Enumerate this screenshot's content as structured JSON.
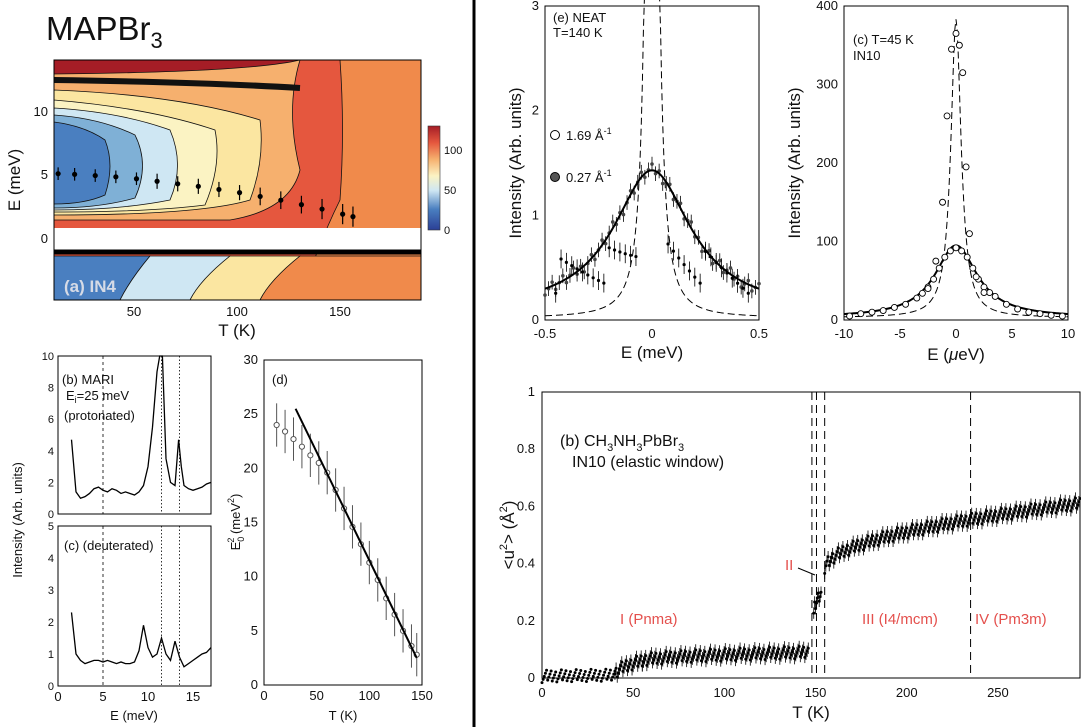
{
  "figure_title": "MAPBr",
  "figure_title_sub": "3",
  "chart_data": [
    {
      "id": "a",
      "type": "heatmap",
      "panel_label": "(a) IN4",
      "xlabel": "T (K)",
      "ylabel": "E (meV)",
      "xlim": [
        10,
        188
      ],
      "ylim": [
        -5,
        14
      ],
      "xticks": [
        "50",
        "100",
        "150"
      ],
      "yticks": [
        "0",
        "5",
        "10"
      ],
      "colorbar_ticks": [
        "0",
        "50",
        "100"
      ],
      "colorbar_range": [
        0,
        130
      ],
      "series": [
        {
          "x": [
            12,
            20,
            30,
            40,
            50,
            60,
            70,
            80,
            90,
            100,
            110,
            120,
            130,
            140,
            150,
            155
          ],
          "y": [
            5.0,
            4.95,
            4.85,
            4.75,
            4.6,
            4.4,
            4.2,
            4.0,
            3.75,
            3.5,
            3.2,
            2.9,
            2.55,
            2.2,
            1.8,
            1.6
          ],
          "err": [
            0.5,
            0.5,
            0.5,
            0.5,
            0.5,
            0.6,
            0.6,
            0.6,
            0.6,
            0.6,
            0.7,
            0.7,
            0.7,
            0.8,
            0.8,
            0.8
          ]
        }
      ]
    },
    {
      "id": "b-mari",
      "type": "line",
      "panel_label": "(b) MARI",
      "annotation_1": "E",
      "annotation_1_sub": "i",
      "annotation_1_rest": "=25 meV",
      "annotation_2": "(protonated)",
      "ylim": [
        0,
        10
      ],
      "xlim": [
        0,
        17
      ],
      "yticks": [
        "0",
        "2",
        "4",
        "6",
        "8",
        "10"
      ],
      "x": [
        1.5,
        2.0,
        2.5,
        3,
        3.5,
        4,
        4.5,
        5,
        5.5,
        6,
        6.5,
        7,
        7.5,
        8,
        8.5,
        9,
        9.5,
        10,
        10.5,
        11,
        11.3,
        11.6,
        12,
        12.5,
        13,
        13.4,
        13.7,
        14,
        14.5,
        15,
        15.5,
        16,
        16.5,
        17
      ],
      "y": [
        4.7,
        1.4,
        1.0,
        1.1,
        1.3,
        1.6,
        1.7,
        1.5,
        1.4,
        1.6,
        1.5,
        1.3,
        1.4,
        1.3,
        1.2,
        1.4,
        1.8,
        3.0,
        5.5,
        9.0,
        10.0,
        10.0,
        3.5,
        2.0,
        1.8,
        4.7,
        3.0,
        1.8,
        1.6,
        1.5,
        1.6,
        1.7,
        1.9,
        2.0
      ],
      "vlines": [
        5,
        11.5,
        13.5
      ]
    },
    {
      "id": "c-mari",
      "type": "line",
      "panel_label": "(c) (deuterated)",
      "xlabel": "E (meV)",
      "ylim": [
        0,
        5
      ],
      "xlim": [
        0,
        17
      ],
      "xticks": [
        "0",
        "5",
        "10",
        "15"
      ],
      "yticks": [
        "0",
        "1",
        "2",
        "3",
        "4",
        "5"
      ],
      "x": [
        1.5,
        2.0,
        2.5,
        3,
        3.5,
        4,
        4.5,
        5,
        5.5,
        6,
        6.5,
        7,
        7.5,
        8,
        8.5,
        9,
        9.5,
        10,
        10.5,
        11,
        11.5,
        12,
        12.5,
        13,
        13.5,
        14,
        14.5,
        15,
        15.5,
        16,
        16.5,
        17
      ],
      "y": [
        2.3,
        1.0,
        0.8,
        0.7,
        0.75,
        0.8,
        0.8,
        0.75,
        0.8,
        0.75,
        0.7,
        0.75,
        0.7,
        0.7,
        0.75,
        1.1,
        1.9,
        1.2,
        0.9,
        1.0,
        1.5,
        1.0,
        0.8,
        1.4,
        0.9,
        0.6,
        0.7,
        0.8,
        0.9,
        1.0,
        1.05,
        1.2
      ],
      "vlines": [
        5,
        11.5,
        13.5
      ]
    },
    {
      "id": "d",
      "type": "scatter",
      "panel_label": "(d)",
      "xlabel": "T (K)",
      "ylabel_main": "E",
      "ylabel_sub": "0",
      "ylabel_sup": "2",
      "ylabel_unit": " (meV",
      "ylabel_unit_sup": "2",
      "ylabel_close": ")",
      "xlim": [
        0,
        150
      ],
      "ylim": [
        0,
        30
      ],
      "xticks": [
        "0",
        "50",
        "100",
        "150"
      ],
      "yticks": [
        "0",
        "5",
        "10",
        "15",
        "20",
        "25",
        "30"
      ],
      "x": [
        12,
        20,
        28,
        36,
        44,
        52,
        60,
        68,
        76,
        84,
        92,
        100,
        108,
        116,
        124,
        132,
        140,
        145
      ],
      "y": [
        24.0,
        23.4,
        22.7,
        22.0,
        21.2,
        20.5,
        19.6,
        18.0,
        16.3,
        14.6,
        13.0,
        11.3,
        9.7,
        8.0,
        6.5,
        5.0,
        3.6,
        2.8
      ],
      "err": 2.0,
      "fit_line": {
        "x": [
          30,
          145
        ],
        "y": [
          25.5,
          2.5
        ]
      }
    },
    {
      "id": "e-neat",
      "type": "scatter",
      "panel_label": "(e) NEAT",
      "panel_sub": "T=140 K",
      "xlabel": "E (meV)",
      "ylabel": "Intensity (Arb. units)",
      "xlim": [
        -0.5,
        0.5
      ],
      "ylim": [
        0,
        3
      ],
      "xticks": [
        "-0.5",
        "0",
        "0.5"
      ],
      "yticks": [
        "0",
        "1",
        "2",
        "3"
      ],
      "legend": [
        {
          "label": "1.69 Å",
          "sup": "-1",
          "marker": "open"
        },
        {
          "label": "0.27 Å",
          "sup": "-1",
          "marker": "filled"
        }
      ],
      "lorentz_amp": 1.35,
      "lorentz_gamma": 0.22,
      "narrow_amp": 20,
      "narrow_gamma": 0.016,
      "baseline": 0.08
    },
    {
      "id": "c-in10",
      "type": "scatter",
      "panel_label": "(c) T=45 K",
      "panel_sub": "IN10",
      "xlabel_main": "E (",
      "xlabel_mu": "μ",
      "xlabel_rest": "eV)",
      "ylabel": "Intensity (Arb. units)",
      "xlim": [
        -10,
        10
      ],
      "ylim": [
        0,
        400
      ],
      "xticks": [
        "-10",
        "-5",
        "0",
        "5",
        "10"
      ],
      "yticks": [
        "0",
        "100",
        "200",
        "300",
        "400"
      ],
      "narrow_x": [
        -2.5,
        -1.8,
        -1.2,
        -0.8,
        -0.4,
        0,
        0.3,
        0.6,
        0.9,
        1.2,
        1.8,
        2.5
      ],
      "narrow_y": [
        40,
        75,
        150,
        260,
        345,
        365,
        350,
        315,
        195,
        110,
        55,
        35
      ],
      "broad_x": [
        -9.5,
        -8.5,
        -7.5,
        -6.5,
        -5.5,
        -4.5,
        -3.5,
        -3,
        -2.5,
        -2,
        -1.5,
        -1,
        -0.5,
        0,
        0.5,
        1,
        1.5,
        2,
        2.5,
        3,
        3.5,
        4.5,
        5.5,
        6.5,
        7.5,
        8.5,
        9.5
      ],
      "broad_y": [
        5,
        8,
        10,
        12,
        16,
        20,
        28,
        34,
        42,
        52,
        66,
        80,
        88,
        92,
        88,
        80,
        66,
        52,
        42,
        35,
        30,
        20,
        14,
        10,
        8,
        6,
        5
      ],
      "lorentz_amp": 92,
      "lorentz_gamma": 2.3,
      "narrow_amp": 380,
      "narrow_gamma": 0.55
    },
    {
      "id": "b-in10",
      "type": "scatter",
      "panel_label_main": "(b) CH",
      "panel_label_parts": [
        "3",
        "NH",
        "3",
        "PbBr",
        "3"
      ],
      "panel_sub": "IN10 (elastic window)",
      "xlabel": "T (K)",
      "ylabel": "<u",
      "ylabel_sup": "2",
      "ylabel_mid": "> (",
      "ylabel_unit": "Å",
      "ylabel_unit_sup": "2",
      "ylabel_close": ")",
      "xlim": [
        0,
        295
      ],
      "ylim": [
        0,
        1
      ],
      "xticks": [
        "0",
        "50",
        "100",
        "150",
        "200",
        "250"
      ],
      "yticks": [
        "0",
        "0.2",
        "0.4",
        "0.6",
        "0.8",
        "1"
      ],
      "vlines": [
        148,
        150.5,
        155,
        235
      ],
      "phases": [
        {
          "label": "I (Pnma)"
        },
        {
          "label": "II"
        },
        {
          "label": "III (I4/mcm)"
        },
        {
          "label": "IV (Pm3m)"
        }
      ],
      "segments": [
        {
          "x": [
            0,
            40
          ],
          "y": [
            0.005,
            0.01
          ]
        },
        {
          "x": [
            40,
            55
          ],
          "y": [
            0.01,
            0.06
          ]
        },
        {
          "x": [
            55,
            146
          ],
          "y": [
            0.06,
            0.09
          ]
        },
        {
          "x": [
            149,
            153
          ],
          "y": [
            0.22,
            0.3
          ]
        },
        {
          "x": [
            155,
            295
          ],
          "y": [
            0.38,
            0.61
          ]
        }
      ]
    }
  ]
}
